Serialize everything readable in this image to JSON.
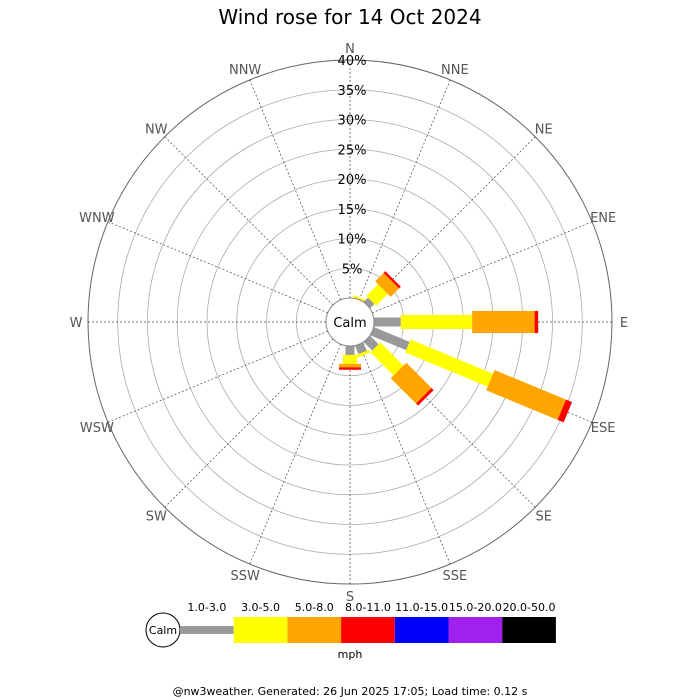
{
  "chart_data": {
    "type": "windrose",
    "title": "Wind rose for 14 Oct 2024",
    "directions": [
      "N",
      "NNE",
      "NE",
      "ENE",
      "E",
      "ESE",
      "SE",
      "SSE",
      "S",
      "SSW",
      "SW",
      "WSW",
      "W",
      "WNW",
      "NW",
      "NNW"
    ],
    "percent_ticks": [
      "5%",
      "10%",
      "15%",
      "20%",
      "25%",
      "30%",
      "35%",
      "40%"
    ],
    "r_max": 40,
    "calm_label": "Calm",
    "speed_bins": [
      {
        "label": "1.0-3.0",
        "color": "#999999"
      },
      {
        "label": "3.0-5.0",
        "color": "#ffff00"
      },
      {
        "label": "5.0-8.0",
        "color": "#ffa500"
      },
      {
        "label": "8.0-11.0",
        "color": "#ff0000"
      },
      {
        "label": "11.0-15.0",
        "color": "#0000ff"
      },
      {
        "label": "15.0-20.0",
        "color": "#a020f0"
      },
      {
        "label": "20.0-50.0",
        "color": "#000000"
      }
    ],
    "units": "mph",
    "series": [
      {
        "direction": "NNE",
        "values": [
          0,
          0.4,
          0,
          0,
          0,
          0,
          0
        ]
      },
      {
        "direction": "NE",
        "values": [
          1.0,
          2.8,
          2.0,
          0.4,
          0,
          0,
          0
        ]
      },
      {
        "direction": "E",
        "values": [
          4.5,
          12.0,
          10.5,
          0.6,
          0,
          0,
          0
        ]
      },
      {
        "direction": "ESE",
        "values": [
          6.5,
          15.0,
          13.0,
          1.1,
          0,
          0,
          0
        ]
      },
      {
        "direction": "SE",
        "values": [
          2.0,
          5.5,
          6.0,
          0.5,
          0,
          0,
          0
        ]
      },
      {
        "direction": "SSE",
        "values": [
          1.5,
          0.5,
          0,
          0,
          0,
          0,
          0
        ]
      },
      {
        "direction": "S",
        "values": [
          1.5,
          1.5,
          0.6,
          0.4,
          0,
          0,
          0
        ]
      }
    ]
  },
  "footer": "@nw3weather. Generated: 26 Jun 2025 17:05; Load time: 0.12 s"
}
